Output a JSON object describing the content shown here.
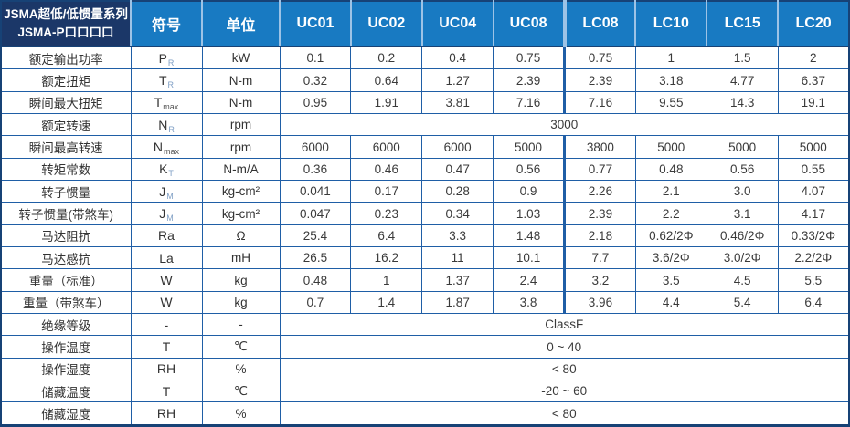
{
  "table": {
    "title_line1": "JSMA超低/低惯量系列",
    "title_line2": "JSMA-P口口口口",
    "col_symbol": "符号",
    "col_unit": "单位",
    "model_columns": [
      "UC01",
      "UC02",
      "UC04",
      "UC08",
      "LC08",
      "LC10",
      "LC15",
      "LC20"
    ],
    "group_split_index": 4,
    "rows": [
      {
        "label": "额定输出功率",
        "sym": "P",
        "sub": "R",
        "unit": "kW",
        "values": [
          "0.1",
          "0.2",
          "0.4",
          "0.75",
          "0.75",
          "1",
          "1.5",
          "2"
        ]
      },
      {
        "label": "额定扭矩",
        "sym": "T",
        "sub": "R",
        "unit": "N-m",
        "values": [
          "0.32",
          "0.64",
          "1.27",
          "2.39",
          "2.39",
          "3.18",
          "4.77",
          "6.37"
        ]
      },
      {
        "label": "瞬间最大扭矩",
        "sym": "T",
        "sub": "max",
        "unit": "N-m",
        "values": [
          "0.95",
          "1.91",
          "3.81",
          "7.16",
          "7.16",
          "9.55",
          "14.3",
          "19.1"
        ]
      },
      {
        "label": "额定转速",
        "sym": "N",
        "sub": "R",
        "unit": "rpm",
        "merged": "3000"
      },
      {
        "label": "瞬间最高转速",
        "sym": "N",
        "sub": "max",
        "unit": "rpm",
        "values": [
          "6000",
          "6000",
          "6000",
          "5000",
          "3800",
          "5000",
          "5000",
          "5000"
        ]
      },
      {
        "label": "转矩常数",
        "sym": "K",
        "sub": "T",
        "unit": "N-m/A",
        "values": [
          "0.36",
          "0.46",
          "0.47",
          "0.56",
          "0.77",
          "0.48",
          "0.56",
          "0.55"
        ]
      },
      {
        "label": "转子惯量",
        "sym": "J",
        "sub": "M",
        "unit": "kg-cm²",
        "values": [
          "0.041",
          "0.17",
          "0.28",
          "0.9",
          "2.26",
          "2.1",
          "3.0",
          "4.07"
        ]
      },
      {
        "label": "转子惯量(带煞车)",
        "sym": "J",
        "sub": "M",
        "unit": "kg-cm²",
        "values": [
          "0.047",
          "0.23",
          "0.34",
          "1.03",
          "2.39",
          "2.2",
          "3.1",
          "4.17"
        ]
      },
      {
        "label": "马达阻抗",
        "sym": "Ra",
        "sub": "",
        "unit": "Ω",
        "values": [
          "25.4",
          "6.4",
          "3.3",
          "1.48",
          "2.18",
          "0.62/2Φ",
          "0.46/2Φ",
          "0.33/2Φ"
        ]
      },
      {
        "label": "马达感抗",
        "sym": "La",
        "sub": "",
        "unit": "mH",
        "values": [
          "26.5",
          "16.2",
          "11",
          "10.1",
          "7.7",
          "3.6/2Φ",
          "3.0/2Φ",
          "2.2/2Φ"
        ]
      },
      {
        "label": "重量（标准）",
        "sym": "W",
        "sub": "",
        "unit": "kg",
        "values": [
          "0.48",
          "1",
          "1.37",
          "2.4",
          "3.2",
          "3.5",
          "4.5",
          "5.5"
        ]
      },
      {
        "label": "重量（带煞车）",
        "sym": "W",
        "sub": "",
        "unit": "kg",
        "values": [
          "0.7",
          "1.4",
          "1.87",
          "3.8",
          "3.96",
          "4.4",
          "5.4",
          "6.4"
        ]
      },
      {
        "label": "绝缘等级",
        "sym": "-",
        "sub": "",
        "unit": "-",
        "merged": "ClassF"
      },
      {
        "label": "操作温度",
        "sym": "T",
        "sub": "",
        "unit": "℃",
        "merged": "0 ~ 40"
      },
      {
        "label": "操作湿度",
        "sym": "RH",
        "sub": "",
        "unit": "%",
        "merged": "< 80"
      },
      {
        "label": "储藏温度",
        "sym": "T",
        "sub": "",
        "unit": "℃",
        "merged": "-20 ~ 60"
      },
      {
        "label": "储藏湿度",
        "sym": "RH",
        "sub": "",
        "unit": "%",
        "merged": "< 80"
      }
    ]
  },
  "colors": {
    "header_blue": "#187ac2",
    "title_navy": "#1b3768",
    "grid_blue": "#1f5ea6",
    "header_divider": "#9dc3e6",
    "dark_border": "#174276",
    "label_text": "#333333",
    "value_text": "#3a3a3a",
    "subscript": "#7f9fc5"
  }
}
